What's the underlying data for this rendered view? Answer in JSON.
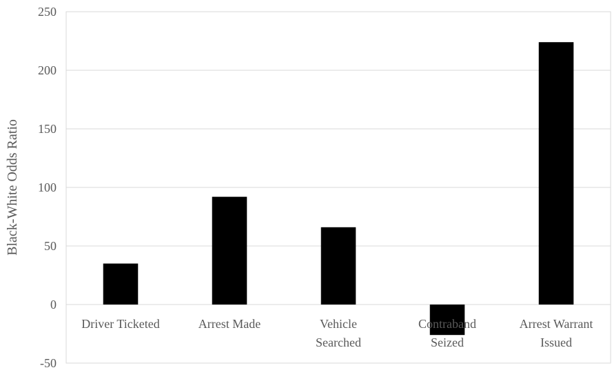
{
  "chart_data": {
    "type": "bar",
    "categories": [
      [
        "Driver Ticketed"
      ],
      [
        "Arrest Made"
      ],
      [
        "Vehicle",
        "Searched"
      ],
      [
        "Contraband",
        "Seized"
      ],
      [
        "Arrest Warrant",
        "Issued"
      ]
    ],
    "series": [
      {
        "values": [
          35,
          92,
          66,
          -26,
          224
        ],
        "color": "#000000"
      }
    ],
    "title": "",
    "xlabel": "",
    "ylabel": "Black-White Odds Ratio",
    "ylim": [
      -50,
      250
    ],
    "yticks": [
      -50,
      0,
      50,
      100,
      150,
      200,
      250
    ],
    "grid": true,
    "legend": "none"
  }
}
